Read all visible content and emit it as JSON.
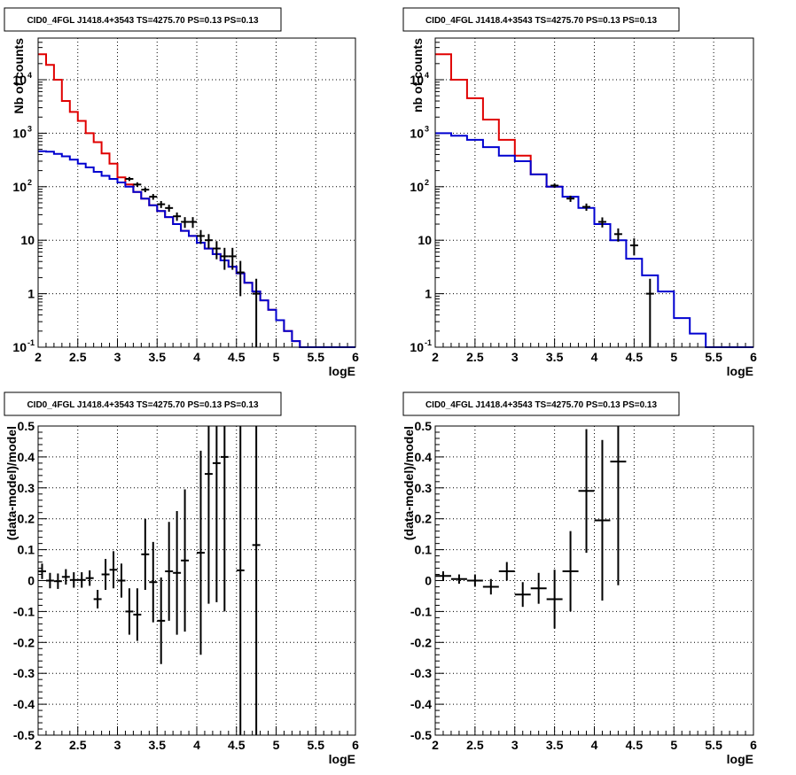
{
  "title": "CID0_4FGL J1418.4+3543 TS=4275.70 PS=0.13 PS=0.13",
  "colors": {
    "model": "#e00000",
    "background": "#0000d0",
    "data": "#000000"
  },
  "chart_data": [
    {
      "type": "line",
      "title": "CID0_4FGL J1418.4+3543 TS=4275.70 PS=0.13 PS=0.13",
      "xlabel": "logE",
      "ylabel": "Nb of counts",
      "xlim": [
        2,
        6
      ],
      "ylim": [
        0.1,
        60000
      ],
      "yscale": "log",
      "x_ticks": [
        "2",
        "2.5",
        "3",
        "3.5",
        "4",
        "4.5",
        "5",
        "5.5",
        "6"
      ],
      "y_ticks": [
        "10^-1",
        "1",
        "10",
        "10^2",
        "10^3",
        "10^4"
      ],
      "grid": true,
      "series": [
        {
          "kind": "step",
          "color": "red",
          "bin_edges": [
            2.0,
            2.1,
            2.2,
            2.3,
            2.4,
            2.5,
            2.6,
            2.7,
            2.8,
            2.9,
            3.0,
            3.1,
            3.2,
            3.3,
            3.4,
            3.5,
            3.6,
            3.7,
            3.8,
            3.9,
            4.0,
            4.1,
            4.2,
            4.3,
            4.4,
            4.5,
            4.6,
            4.7,
            4.8,
            4.9,
            5.0,
            5.1,
            5.2,
            5.3,
            5.4,
            5.5,
            5.6,
            5.7,
            5.8,
            5.9,
            6.0
          ],
          "values": [
            30000,
            19000,
            10000,
            4000,
            2500,
            1700,
            1000,
            680,
            420,
            270,
            150,
            110,
            80,
            60,
            45,
            35,
            27,
            20,
            15,
            12,
            9,
            7,
            5.5,
            4.2,
            3.2,
            2.4,
            1.6,
            1.1,
            0.75,
            0.5,
            0.32,
            0.2,
            0.13,
            0.1,
            0.1,
            0.1,
            0.1,
            0.1,
            0.1,
            0.1
          ]
        },
        {
          "kind": "step",
          "color": "blue",
          "bin_edges": [
            2.0,
            2.1,
            2.2,
            2.3,
            2.4,
            2.5,
            2.6,
            2.7,
            2.8,
            2.9,
            3.0,
            3.1,
            3.2,
            3.3,
            3.4,
            3.5,
            3.6,
            3.7,
            3.8,
            3.9,
            4.0,
            4.1,
            4.2,
            4.3,
            4.4,
            4.5,
            4.6,
            4.7,
            4.8,
            4.9,
            5.0,
            5.1,
            5.2,
            5.3,
            5.4,
            5.5,
            5.6,
            5.7,
            5.8,
            5.9,
            6.0
          ],
          "values": [
            460,
            450,
            410,
            370,
            320,
            270,
            230,
            190,
            160,
            140,
            120,
            100,
            80,
            60,
            45,
            35,
            27,
            20,
            15,
            12,
            9,
            7,
            5.5,
            4.2,
            3.2,
            2.4,
            1.6,
            1.1,
            0.75,
            0.5,
            0.32,
            0.2,
            0.13,
            0.1,
            0.1,
            0.1,
            0.1,
            0.1,
            0.1,
            0.1
          ]
        },
        {
          "kind": "errorbar",
          "color": "black",
          "x": [
            3.15,
            3.25,
            3.35,
            3.45,
            3.55,
            3.65,
            3.75,
            3.85,
            3.95,
            4.05,
            4.15,
            4.25,
            4.35,
            4.45,
            4.55,
            4.75
          ],
          "y": [
            140,
            110,
            88,
            65,
            47,
            40,
            28,
            22,
            22,
            12,
            10,
            7,
            5,
            5,
            2.5,
            1
          ],
          "yerr_low": [
            12,
            11,
            9,
            8,
            7,
            6,
            5,
            5,
            5,
            3.5,
            3,
            2.6,
            2.2,
            2.2,
            1.6,
            0.9
          ],
          "yerr_high": [
            12,
            11,
            9,
            8,
            7,
            6,
            5,
            5,
            5,
            3.5,
            3,
            2.6,
            2.2,
            2.2,
            1.6,
            0.9
          ]
        }
      ]
    },
    {
      "type": "line",
      "title": "CID0_4FGL J1418.4+3543 TS=4275.70 PS=0.13 PS=0.13",
      "xlabel": "logE",
      "ylabel": "nb of counts",
      "xlim": [
        2,
        6
      ],
      "ylim": [
        0.1,
        60000
      ],
      "yscale": "log",
      "x_ticks": [
        "2",
        "2.5",
        "3",
        "3.5",
        "4",
        "4.5",
        "5",
        "5.5",
        "6"
      ],
      "y_ticks": [
        "10^-1",
        "1",
        "10",
        "10^2",
        "10^3",
        "10^4"
      ],
      "grid": true,
      "series": [
        {
          "kind": "step",
          "color": "red",
          "bin_edges": [
            2.0,
            2.2,
            2.4,
            2.6,
            2.8,
            3.0,
            3.2,
            3.4,
            3.6,
            3.8,
            4.0,
            4.2,
            4.4,
            4.6,
            4.8,
            5.0,
            5.2,
            5.4,
            5.6,
            5.8,
            6.0
          ],
          "values": [
            30000,
            10000,
            4500,
            1800,
            750,
            380,
            170,
            100,
            65,
            40,
            20,
            10,
            4.5,
            2.2,
            1.1,
            0.35,
            0.18,
            0.1,
            0.1,
            0.1
          ],
          "line_to": 3.6
        },
        {
          "kind": "step",
          "color": "blue",
          "bin_edges": [
            2.0,
            2.2,
            2.4,
            2.6,
            2.8,
            3.0,
            3.2,
            3.4,
            3.6,
            3.8,
            4.0,
            4.2,
            4.4,
            4.6,
            4.8,
            5.0,
            5.2,
            5.4,
            5.6,
            5.8,
            6.0
          ],
          "values": [
            1000,
            900,
            750,
            550,
            380,
            300,
            170,
            100,
            65,
            40,
            20,
            10,
            4.5,
            2.2,
            1.1,
            0.35,
            0.18,
            0.1,
            0.1,
            0.1
          ]
        },
        {
          "kind": "errorbar",
          "color": "black",
          "x": [
            3.5,
            3.7,
            3.9,
            4.1,
            4.3,
            4.5,
            4.7
          ],
          "y": [
            105,
            60,
            42,
            22,
            13,
            8,
            1
          ],
          "yerr_low": [
            10,
            8,
            6.5,
            4.7,
            3.6,
            2.8,
            0.9
          ],
          "yerr_high": [
            10,
            8,
            6.5,
            4.7,
            3.6,
            2.8,
            0.9
          ]
        }
      ]
    },
    {
      "type": "scatter",
      "title": "CID0_4FGL J1418.4+3543 TS=4275.70 PS=0.13 PS=0.13",
      "xlabel": "logE",
      "ylabel": "(data-model)/model",
      "xlim": [
        2,
        6
      ],
      "ylim": [
        -0.5,
        0.5
      ],
      "x_ticks": [
        "2",
        "2.5",
        "3",
        "3.5",
        "4",
        "4.5",
        "5",
        "5.5",
        "6"
      ],
      "y_ticks": [
        "-0.5",
        "-0.4",
        "-0.3",
        "-0.2",
        "-0.1",
        "0",
        "0.1",
        "0.2",
        "0.3",
        "0.4",
        "0.5"
      ],
      "grid": true,
      "series": [
        {
          "kind": "errorbar",
          "color": "black",
          "xhalf": 0.05,
          "x": [
            2.05,
            2.15,
            2.25,
            2.35,
            2.45,
            2.55,
            2.65,
            2.75,
            2.85,
            2.95,
            3.05,
            3.15,
            3.25,
            3.35,
            3.45,
            3.55,
            3.65,
            3.75,
            3.85,
            4.05,
            4.15,
            4.25,
            4.35,
            4.55,
            4.75
          ],
          "y": [
            0.03,
            0.0,
            -0.002,
            0.012,
            0.002,
            0.002,
            0.008,
            -0.06,
            0.02,
            0.035,
            0.0,
            -0.1,
            -0.11,
            0.085,
            -0.005,
            -0.13,
            0.03,
            0.025,
            0.065,
            0.09,
            0.345,
            0.38,
            0.4,
            0.033,
            0.115
          ],
          "yerr": [
            0.025,
            0.025,
            0.025,
            0.025,
            0.025,
            0.025,
            0.025,
            0.03,
            0.05,
            0.06,
            0.055,
            0.075,
            0.085,
            0.115,
            0.13,
            0.14,
            0.16,
            0.2,
            0.23,
            0.33,
            0.42,
            0.45,
            0.5,
            0.7,
            1.0
          ]
        }
      ]
    },
    {
      "type": "scatter",
      "title": "CID0_4FGL J1418.4+3543 TS=4275.70 PS=0.13 PS=0.13",
      "xlabel": "logE",
      "ylabel": "(data-model)/model",
      "xlim": [
        2,
        6
      ],
      "ylim": [
        -0.5,
        0.5
      ],
      "x_ticks": [
        "2",
        "2.5",
        "3",
        "3.5",
        "4",
        "4.5",
        "5",
        "5.5",
        "6"
      ],
      "y_ticks": [
        "-0.5",
        "-0.4",
        "-0.3",
        "-0.2",
        "-0.1",
        "0",
        "0.1",
        "0.2",
        "0.3",
        "0.4",
        "0.5"
      ],
      "grid": true,
      "series": [
        {
          "kind": "errorbar",
          "color": "black",
          "xhalf": 0.1,
          "x": [
            2.1,
            2.3,
            2.5,
            2.7,
            2.9,
            3.1,
            3.3,
            3.5,
            3.7,
            3.9,
            4.1,
            4.3
          ],
          "y": [
            0.015,
            0.005,
            0.0,
            -0.02,
            0.03,
            -0.045,
            -0.025,
            -0.06,
            0.03,
            0.29,
            0.195,
            0.385
          ],
          "yerr": [
            0.015,
            0.015,
            0.02,
            0.025,
            0.03,
            0.04,
            0.05,
            0.095,
            0.13,
            0.2,
            0.26,
            0.4
          ]
        }
      ]
    }
  ]
}
